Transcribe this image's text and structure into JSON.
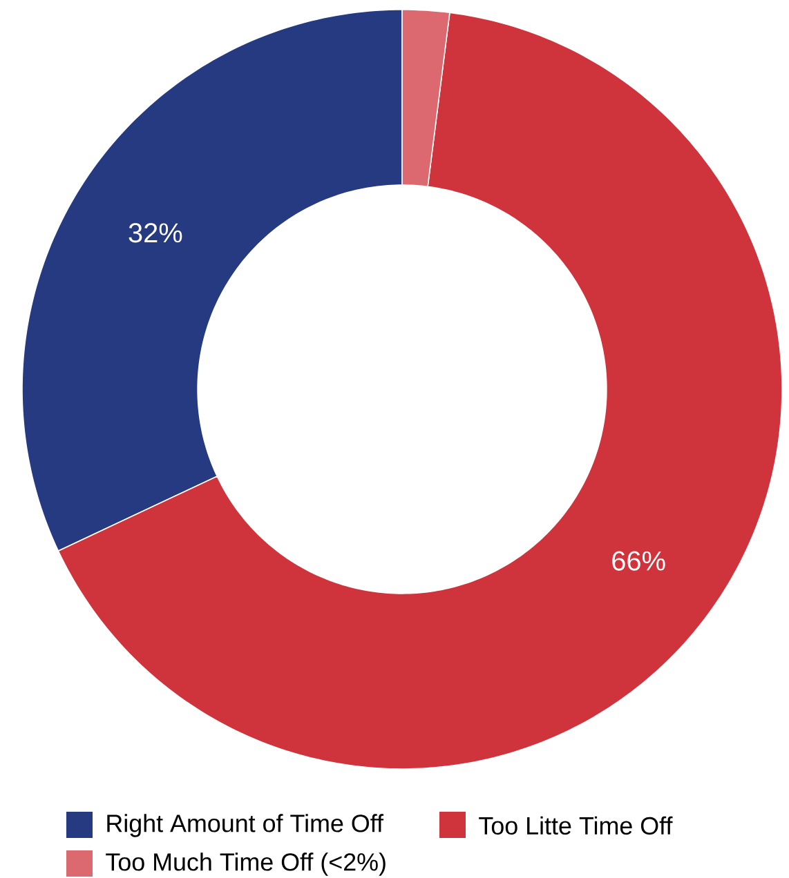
{
  "chart_data": {
    "type": "donut",
    "categories": [
      "Right Amount of Time Off",
      "Too Litte Time Off",
      "Too Much Time Off (<2%)"
    ],
    "values": [
      32,
      66,
      2
    ],
    "colors": [
      "#253a80",
      "#cf343c",
      "#dc6870"
    ],
    "value_labels": [
      "32%",
      "66%",
      null
    ],
    "legend": "bottom"
  }
}
